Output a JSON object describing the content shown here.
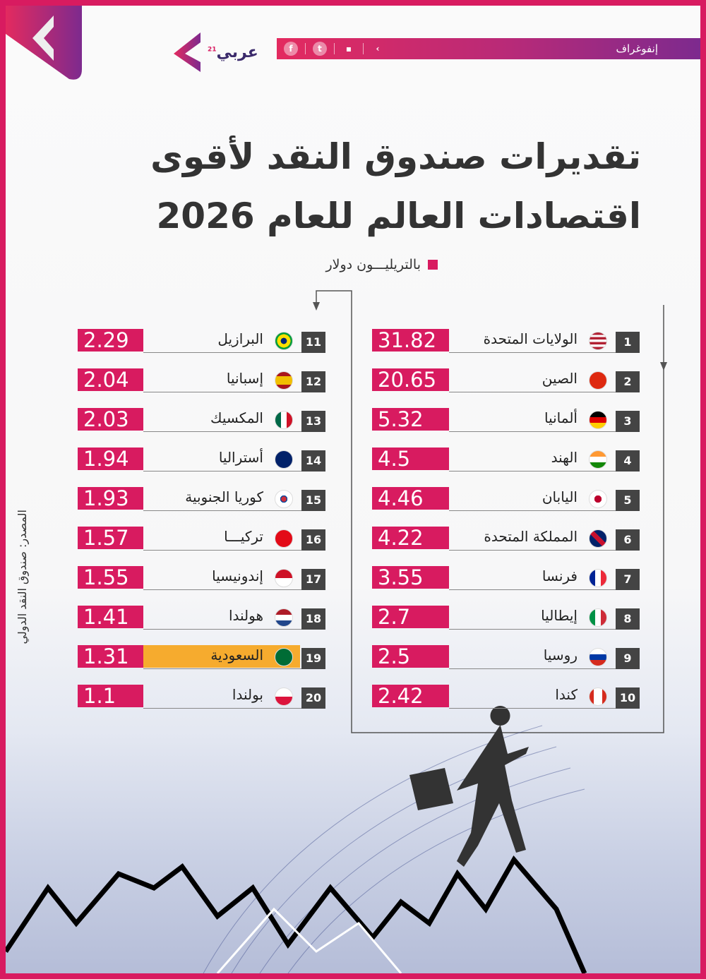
{
  "header": {
    "brand": "عربي",
    "brand_sup": "21",
    "section": "إنفوغراف",
    "social": [
      "facebook-icon",
      "twitter-icon",
      "youtube-icon",
      "brand-arrow-icon"
    ]
  },
  "title": {
    "line1": "تقديرات صندوق النقد لأقوى",
    "line2": "اقتصادات العالم للعام 2026"
  },
  "unit_label": "بالتريليـــون دولار",
  "source": "المصدر: صندوق النقد الدولي",
  "colors": {
    "accent": "#d81b60",
    "highlight": "#f6ab2e",
    "rank": "#444444"
  },
  "chart_data": {
    "type": "table",
    "columns": [
      "rank",
      "country",
      "value"
    ],
    "highlight_rank": 19,
    "rows": [
      {
        "rank": "1",
        "country": "الولايات المتحدة",
        "value": "31.82",
        "flag": "us"
      },
      {
        "rank": "2",
        "country": "الصين",
        "value": "20.65",
        "flag": "cn"
      },
      {
        "rank": "3",
        "country": "ألمانيا",
        "value": "5.32",
        "flag": "de"
      },
      {
        "rank": "4",
        "country": "الهند",
        "value": "4.5",
        "flag": "in"
      },
      {
        "rank": "5",
        "country": "اليابان",
        "value": "4.46",
        "flag": "jp"
      },
      {
        "rank": "6",
        "country": "المملكة المتحدة",
        "value": "4.22",
        "flag": "gb"
      },
      {
        "rank": "7",
        "country": "فرنسا",
        "value": "3.55",
        "flag": "fr"
      },
      {
        "rank": "8",
        "country": "إيطاليا",
        "value": "2.7",
        "flag": "it"
      },
      {
        "rank": "9",
        "country": "روسيا",
        "value": "2.5",
        "flag": "ru"
      },
      {
        "rank": "10",
        "country": "كندا",
        "value": "2.42",
        "flag": "ca"
      },
      {
        "rank": "11",
        "country": "البرازيل",
        "value": "2.29",
        "flag": "br"
      },
      {
        "rank": "12",
        "country": "إسبانيا",
        "value": "2.04",
        "flag": "es"
      },
      {
        "rank": "13",
        "country": "المكسيك",
        "value": "2.03",
        "flag": "mx"
      },
      {
        "rank": "14",
        "country": "أستراليا",
        "value": "1.94",
        "flag": "au"
      },
      {
        "rank": "15",
        "country": "كوريا الجنوبية",
        "value": "1.93",
        "flag": "kr"
      },
      {
        "rank": "16",
        "country": "تركيـــا",
        "value": "1.57",
        "flag": "tr"
      },
      {
        "rank": "17",
        "country": "إندونيسيا",
        "value": "1.55",
        "flag": "id"
      },
      {
        "rank": "18",
        "country": "هولندا",
        "value": "1.41",
        "flag": "nl"
      },
      {
        "rank": "19",
        "country": "السعودية",
        "value": "1.31",
        "flag": "sa"
      },
      {
        "rank": "20",
        "country": "بولندا",
        "value": "1.1",
        "flag": "pl"
      }
    ]
  }
}
